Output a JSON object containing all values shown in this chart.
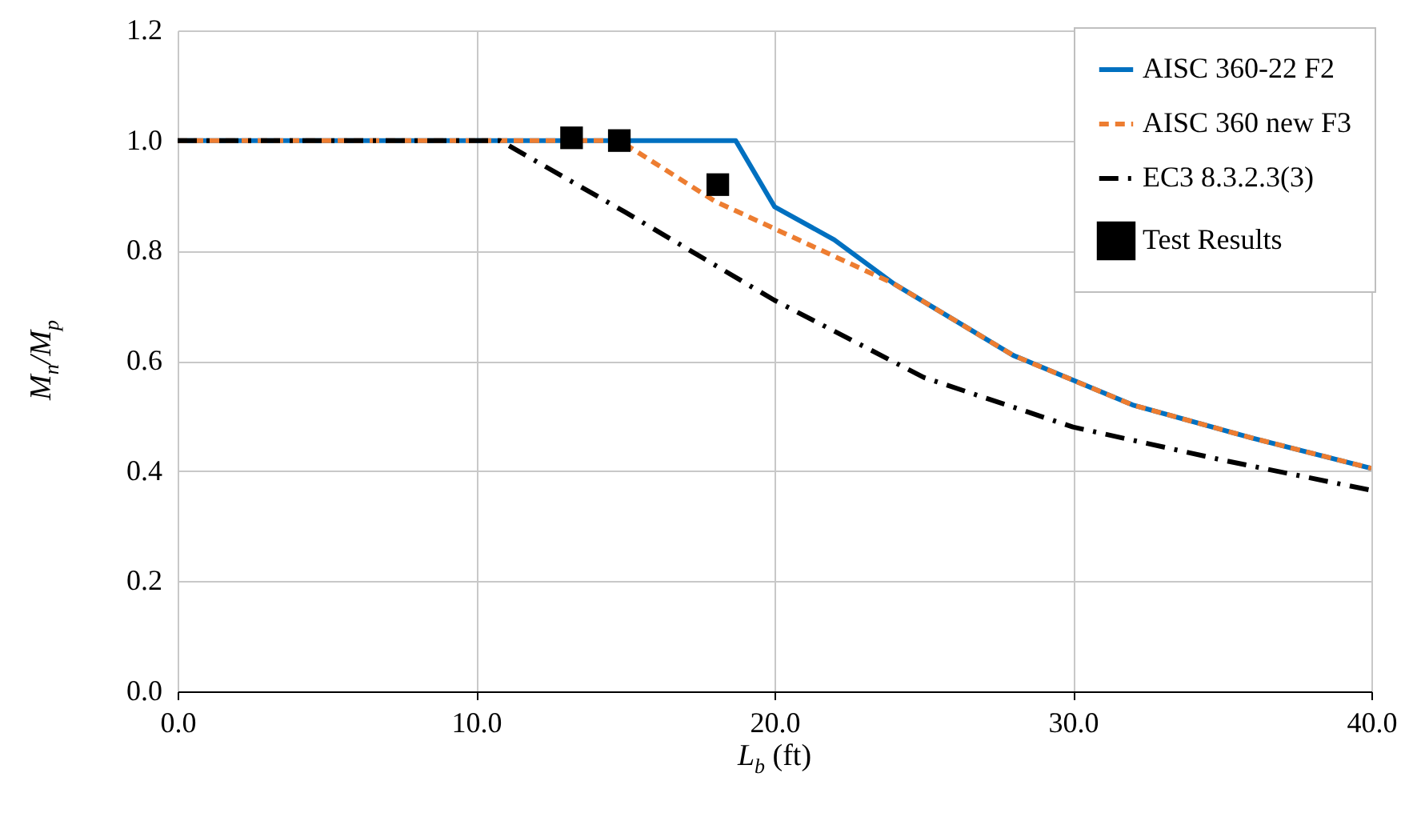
{
  "chart_data": {
    "type": "line",
    "xlabel": "L$_{b}$ (ft)",
    "ylabel": "M$_{n}$/M$_{p}$",
    "xlim": [
      0,
      40
    ],
    "ylim": [
      0,
      1.2
    ],
    "xticks": [
      {
        "value": 0,
        "label": "0.0"
      },
      {
        "value": 10,
        "label": "10.0"
      },
      {
        "value": 20,
        "label": "20.0"
      },
      {
        "value": 30,
        "label": "30.0"
      },
      {
        "value": 40,
        "label": "40.0"
      }
    ],
    "yticks": [
      {
        "value": 0,
        "label": "0.0"
      },
      {
        "value": 0.2,
        "label": "0.2"
      },
      {
        "value": 0.4,
        "label": "0.4"
      },
      {
        "value": 0.6,
        "label": "0.6"
      },
      {
        "value": 0.8,
        "label": "0.8"
      },
      {
        "value": 1,
        "label": "1.0"
      },
      {
        "value": 1.2,
        "label": "1.2"
      }
    ],
    "grid": true,
    "legend": "top right",
    "series": [
      {
        "name": "AISC 360-22 F2",
        "color": "#0070c0",
        "line_style": "solid",
        "x": [
          0,
          18.7,
          20,
          22,
          24,
          28,
          32,
          36,
          40
        ],
        "values": [
          1,
          1,
          0.88,
          0.82,
          0.74,
          0.61,
          0.52,
          0.46,
          0.405
        ]
      },
      {
        "name": "AISC 360 new F3",
        "color": "#ed7d31",
        "line_style": "dashed",
        "x": [
          0,
          14.8,
          18,
          20,
          22,
          24,
          28,
          32,
          36,
          40
        ],
        "values": [
          1,
          1,
          0.89,
          0.84,
          0.79,
          0.74,
          0.61,
          0.52,
          0.46,
          0.405
        ]
      },
      {
        "name": "EC3 8.3.2.3(3)",
        "color": "#000000",
        "line_style": "dashdot",
        "x": [
          0,
          10.8,
          15,
          20,
          25,
          30,
          35,
          40
        ],
        "values": [
          1,
          1,
          0.87,
          0.71,
          0.57,
          0.48,
          0.42,
          0.365
        ]
      },
      {
        "name": "Test Results",
        "type": "scatter",
        "marker": "square",
        "color": "#000000",
        "x": [
          13.2,
          14.8,
          18.1
        ],
        "values": [
          1.005,
          1.0,
          0.92
        ]
      }
    ]
  }
}
